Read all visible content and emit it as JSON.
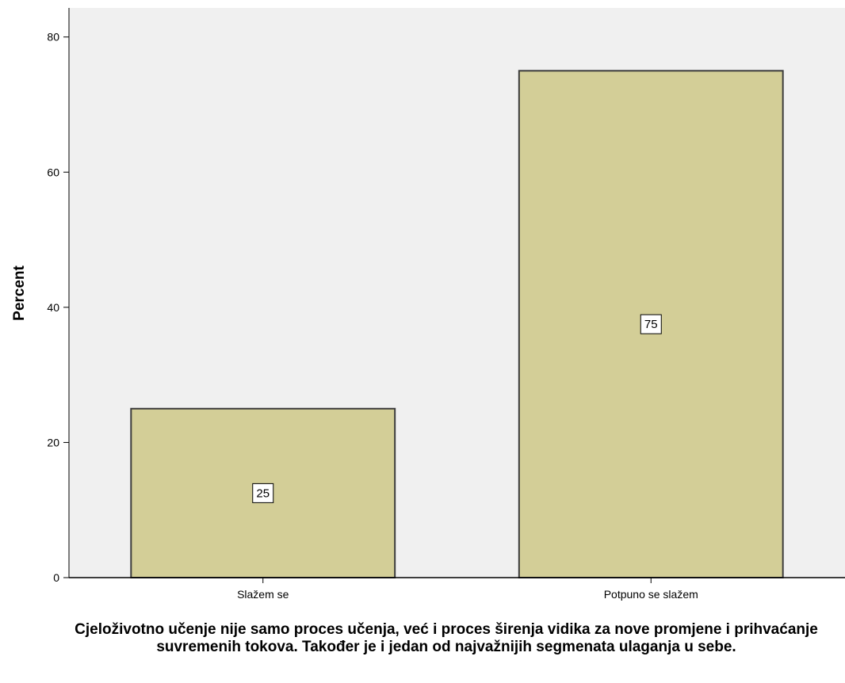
{
  "chart_data": {
    "type": "bar",
    "categories": [
      "Slažem se",
      "Potpuno se slažem"
    ],
    "values": [
      25,
      75
    ],
    "data_labels": [
      "25",
      "75"
    ],
    "ylabel": "Percent",
    "xlabel": "Cjeloživotno učenje nije samo proces učenja, već i proces širenja vidika za nove promjene i prihvaćanje suvremenih tokova. Također je i jedan od najvažnijih segmenata ulaganja u sebe.",
    "ylim": [
      0,
      84.3
    ],
    "yticks": [
      0,
      20,
      40,
      60,
      80
    ],
    "grid": false,
    "colors": {
      "plot_background": "#f0f0f0",
      "bar_fill": "#d3ce97",
      "bar_stroke": "#3c3c3c"
    }
  }
}
